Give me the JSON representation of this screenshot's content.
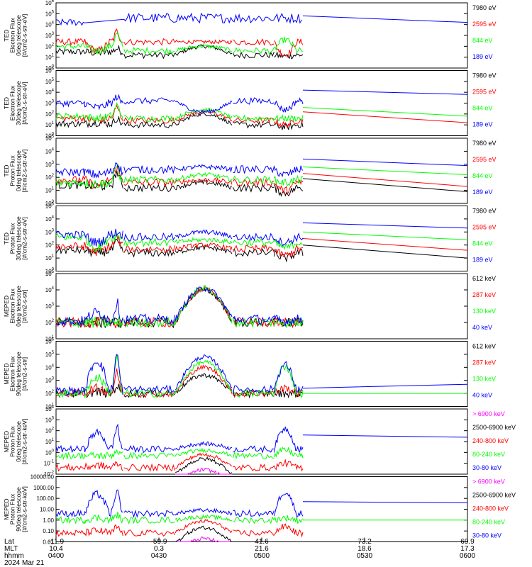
{
  "colors": {
    "black": "#000000",
    "red": "#ff0000",
    "green": "#00ff00",
    "blue": "#0000ff",
    "magenta": "#ff00ff"
  },
  "chart_data": [
    {
      "type": "line",
      "ylabel": "TED\nElectron Flux\n0deg telescope\n[#/cm2-s-str-eV]",
      "yscale": "log",
      "ylim": [
        1,
        1000000
      ],
      "ytick_labels": [
        "10^0",
        "10^1",
        "10^2",
        "10^3",
        "10^4",
        "10^5",
        "10^6"
      ],
      "legend": [
        {
          "label": "7980 eV",
          "color": "#000000"
        },
        {
          "label": "2595 eV",
          "color": "#ff0000"
        },
        {
          "label": "844 eV",
          "color": "#00ff00"
        },
        {
          "label": "189 eV",
          "color": "#0000ff"
        }
      ],
      "series": [
        {
          "name": "7980 eV",
          "color": "#000000",
          "level": [
            1.5,
            1.2
          ],
          "hump": [
            1.4,
            1.8,
            2.0,
            1.1
          ],
          "tail": null
        },
        {
          "name": "2595 eV",
          "color": "#ff0000",
          "level": [
            2.4,
            2.4
          ],
          "hump": [
            1.6,
            3.4,
            2.4,
            1.2
          ],
          "tail": null
        },
        {
          "name": "844 eV",
          "color": "#00ff00",
          "level": [
            2.0,
            1.6
          ],
          "hump": [
            1.6,
            3.2,
            2.0,
            2.6
          ],
          "tail": null
        },
        {
          "name": "189 eV",
          "color": "#0000ff",
          "level": [
            4.2,
            4.6
          ],
          "hump": null,
          "tail": [
            4.8,
            4.2
          ]
        }
      ]
    },
    {
      "type": "line",
      "ylabel": "TED\nElectron Flux\n30deg telescope\n[#/cm2-s-str-eV]",
      "yscale": "log",
      "ylim": [
        1,
        1000000
      ],
      "ytick_labels": [
        "10^0",
        "10^1",
        "10^2",
        "10^3",
        "10^4",
        "10^5",
        "10^6"
      ],
      "legend": [
        {
          "label": "7980 eV",
          "color": "#000000"
        },
        {
          "label": "2595 eV",
          "color": "#ff0000"
        },
        {
          "label": "844 eV",
          "color": "#00ff00"
        },
        {
          "label": "189 eV",
          "color": "#0000ff"
        }
      ],
      "series": [
        {
          "name": "7980 eV",
          "color": "#000000",
          "level": [
            1.1,
            1.0
          ],
          "hump": [
            1.2,
            1.6,
            2.0,
            0.8
          ],
          "tail": null
        },
        {
          "name": "2595 eV",
          "color": "#ff0000",
          "level": [
            1.6,
            1.4
          ],
          "hump": [
            1.4,
            2.6,
            2.2,
            1.0
          ],
          "tail": [
            2.2,
            1.2
          ]
        },
        {
          "name": "844 eV",
          "color": "#00ff00",
          "level": [
            1.8,
            1.6
          ],
          "hump": [
            1.6,
            2.8,
            2.4,
            1.6
          ],
          "tail": [
            2.6,
            1.8
          ]
        },
        {
          "name": "189 eV",
          "color": "#0000ff",
          "level": [
            3.0,
            3.2
          ],
          "hump": [
            2.6,
            3.6,
            2.2,
            2.4
          ],
          "tail": [
            4.2,
            3.8
          ]
        }
      ]
    },
    {
      "type": "line",
      "ylabel": "TED\nProton Flux\n0deg telescope\n[#/cm2-s-str-eV]",
      "yscale": "log",
      "ylim": [
        1,
        100000
      ],
      "ytick_labels": [
        "10^0",
        "10^1",
        "10^2",
        "10^3",
        "10^4",
        "10^5"
      ],
      "legend": [
        {
          "label": "7980 eV",
          "color": "#000000"
        },
        {
          "label": "2595 eV",
          "color": "#ff0000"
        },
        {
          "label": "844 eV",
          "color": "#00ff00"
        },
        {
          "label": "189 eV",
          "color": "#0000ff"
        }
      ],
      "series": [
        {
          "name": "7980 eV",
          "color": "#000000",
          "level": [
            1.4,
            1.2
          ],
          "hump": [
            1.3,
            2.4,
            1.6,
            0.8
          ],
          "tail": [
            1.9,
            0.9
          ]
        },
        {
          "name": "2595 eV",
          "color": "#ff0000",
          "level": [
            1.8,
            1.6
          ],
          "hump": [
            1.4,
            2.8,
            1.8,
            1.0
          ],
          "tail": [
            2.3,
            1.3
          ]
        },
        {
          "name": "844 eV",
          "color": "#00ff00",
          "level": [
            1.6,
            1.8
          ],
          "hump": [
            1.5,
            2.9,
            2.2,
            1.6
          ],
          "tail": [
            2.8,
            2.2
          ]
        },
        {
          "name": "189 eV",
          "color": "#0000ff",
          "level": [
            2.4,
            2.6
          ],
          "hump": [
            2.2,
            3.2,
            2.8,
            2.2
          ],
          "tail": [
            3.4,
            2.9
          ]
        }
      ]
    },
    {
      "type": "line",
      "ylabel": "TED\nProton Flux\n30deg telescope\n[#/cm2-s-str-eV]",
      "yscale": "log",
      "ylim": [
        1,
        100000
      ],
      "ytick_labels": [
        "10^0",
        "10^1",
        "10^2",
        "10^3",
        "10^4",
        "10^5"
      ],
      "legend": [
        {
          "label": "7980 eV",
          "color": "#000000"
        },
        {
          "label": "2595 eV",
          "color": "#ff0000"
        },
        {
          "label": "844 eV",
          "color": "#00ff00"
        },
        {
          "label": "189 eV",
          "color": "#0000ff"
        }
      ],
      "series": [
        {
          "name": "7980 eV",
          "color": "#000000",
          "level": [
            1.6,
            1.4
          ],
          "hump": [
            1.4,
            2.2,
            1.8,
            1.0
          ],
          "tail": [
            2.0,
            1.0
          ]
        },
        {
          "name": "2595 eV",
          "color": "#ff0000",
          "level": [
            1.9,
            1.7
          ],
          "hump": [
            1.5,
            2.6,
            2.0,
            1.2
          ],
          "tail": [
            2.5,
            1.6
          ]
        },
        {
          "name": "844 eV",
          "color": "#00ff00",
          "level": [
            2.6,
            2.2
          ],
          "hump": [
            1.8,
            2.7,
            2.4,
            1.8
          ],
          "tail": [
            3.0,
            2.4
          ]
        },
        {
          "name": "189 eV",
          "color": "#0000ff",
          "level": [
            2.8,
            2.6
          ],
          "hump": [
            2.2,
            3.0,
            3.0,
            2.2
          ],
          "tail": [
            3.7,
            3.3
          ]
        }
      ]
    },
    {
      "type": "line",
      "ylabel": "MEPED\nElectron Flux\n0deg telescope\n[#/cm2-s-str]",
      "yscale": "log",
      "ylim": [
        10,
        100000
      ],
      "ytick_labels": [
        "10^1",
        "10^2",
        "10^3",
        "10^4",
        "10^5"
      ],
      "legend": [
        {
          "label": "612 keV",
          "color": "#000000"
        },
        {
          "label": "287 keV",
          "color": "#ff0000"
        },
        {
          "label": "130 keV",
          "color": "#00ff00"
        },
        {
          "label": "40 keV",
          "color": "#0000ff"
        }
      ],
      "series": [
        {
          "name": "612 keV",
          "color": "#000000",
          "level": [
            2.0,
            2.0
          ],
          "hump": [
            2.0,
            2.0,
            4.0,
            2.0
          ],
          "tail": null
        },
        {
          "name": "287 keV",
          "color": "#ff0000",
          "level": [
            2.0,
            2.0
          ],
          "hump": [
            2.0,
            2.0,
            4.05,
            2.0
          ],
          "tail": null
        },
        {
          "name": "130 keV",
          "color": "#00ff00",
          "level": [
            2.0,
            2.0
          ],
          "hump": [
            2.0,
            2.0,
            4.1,
            2.0
          ],
          "tail": null
        },
        {
          "name": "40 keV",
          "color": "#0000ff",
          "level": [
            2.1,
            2.2
          ],
          "hump": [
            2.6,
            3.2,
            4.1,
            2.1
          ],
          "tail": null
        }
      ]
    },
    {
      "type": "line",
      "ylabel": "MEPED\nElectron Flux\n90deg telescope\n[#/cm2-s-str]",
      "yscale": "log",
      "ylim": [
        10,
        1000000
      ],
      "ytick_labels": [
        "10^1",
        "10^2",
        "10^3",
        "10^4",
        "10^5",
        "10^6"
      ],
      "legend": [
        {
          "label": "612 keV",
          "color": "#000000"
        },
        {
          "label": "287 keV",
          "color": "#ff0000"
        },
        {
          "label": "130 keV",
          "color": "#00ff00"
        },
        {
          "label": "40 keV",
          "color": "#0000ff"
        }
      ],
      "series": [
        {
          "name": "612 keV",
          "color": "#000000",
          "level": [
            2.0,
            2.0
          ],
          "hump": [
            2.1,
            2.6,
            3.4,
            2.0
          ],
          "tail": null
        },
        {
          "name": "287 keV",
          "color": "#ff0000",
          "level": [
            2.0,
            2.0
          ],
          "hump": [
            2.4,
            3.6,
            4.0,
            2.4
          ],
          "tail": null
        },
        {
          "name": "130 keV",
          "color": "#00ff00",
          "level": [
            2.0,
            2.0
          ],
          "hump": [
            3.2,
            4.8,
            4.4,
            4.1
          ],
          "tail": [
            2.0,
            2.0
          ]
        },
        {
          "name": "40 keV",
          "color": "#0000ff",
          "level": [
            2.2,
            2.3
          ],
          "hump": [
            4.5,
            5.0,
            4.8,
            4.2
          ],
          "tail": [
            2.4,
            2.7
          ]
        }
      ]
    },
    {
      "type": "line",
      "ylabel": "MEPED\nProton Flux\n0deg telescope\n[#/cm2-s-str-keV]",
      "yscale": "log",
      "ylim": [
        0.01,
        10000
      ],
      "ytick_labels": [
        "10^-2",
        "10^-1",
        "10^0",
        "10^1",
        "10^2",
        "10^3",
        "10^4"
      ],
      "legend": [
        {
          "label": "> 6900 keV",
          "color": "#ff00ff"
        },
        {
          "label": "2500-6900 keV",
          "color": "#000000"
        },
        {
          "label": "240-800 keV",
          "color": "#ff0000"
        },
        {
          "label": "80-240 keV",
          "color": "#00ff00"
        },
        {
          "label": "30-80 keV",
          "color": "#0000ff"
        }
      ],
      "series": [
        {
          "name": "> 6900 keV",
          "color": "#ff00ff",
          "level": null,
          "hump": [
            null,
            null,
            -1.6,
            null
          ],
          "tail": null
        },
        {
          "name": "2500-6900 keV",
          "color": "#000000",
          "level": null,
          "hump": [
            null,
            null,
            -0.6,
            null
          ],
          "tail": null
        },
        {
          "name": "240-800 keV",
          "color": "#ff0000",
          "level": [
            -1.4,
            -1.4
          ],
          "hump": [
            -1.2,
            -1.0,
            -0.2,
            -1.0
          ],
          "tail": null
        },
        {
          "name": "80-240 keV",
          "color": "#00ff00",
          "level": [
            -0.3,
            -0.3
          ],
          "hump": [
            -0.3,
            0.2,
            0.2,
            0.2
          ],
          "tail": null
        },
        {
          "name": "30-80 keV",
          "color": "#0000ff",
          "level": [
            0.3,
            0.3
          ],
          "hump": [
            1.8,
            2.4,
            0.8,
            2.2
          ],
          "tail": [
            1.6,
            1.4
          ]
        }
      ]
    },
    {
      "type": "line",
      "ylabel": "MEPED\nProton Flux\n90deg telescope\n[#/cm2-s-str-keV]",
      "yscale": "log",
      "ylim": [
        0.01,
        10000
      ],
      "ytick_labels": [
        "10000.00",
        "1000.00",
        "100.00",
        "10.00",
        "1.00",
        "0.10",
        "0.01"
      ],
      "legend": [
        {
          "label": "> 6900 keV",
          "color": "#ff00ff"
        },
        {
          "label": "2500-6900 keV",
          "color": "#000000"
        },
        {
          "label": "240-800 keV",
          "color": "#ff0000"
        },
        {
          "label": "80-240 keV",
          "color": "#00ff00"
        },
        {
          "label": "30-80 keV",
          "color": "#0000ff"
        }
      ],
      "series": [
        {
          "name": "> 6900 keV",
          "color": "#ff00ff",
          "level": null,
          "hump": [
            null,
            null,
            -1.7,
            null
          ],
          "tail": null
        },
        {
          "name": "2500-6900 keV",
          "color": "#000000",
          "level": null,
          "hump": [
            null,
            null,
            -0.7,
            null
          ],
          "tail": null
        },
        {
          "name": "240-800 keV",
          "color": "#ff0000",
          "level": [
            -1.2,
            -1.2
          ],
          "hump": [
            -1.0,
            -0.6,
            -0.1,
            -0.6
          ],
          "tail": null
        },
        {
          "name": "80-240 keV",
          "color": "#00ff00",
          "level": [
            0.0,
            0.0
          ],
          "hump": [
            0.2,
            0.5,
            0.3,
            0.2
          ],
          "tail": [
            0.0,
            0.0
          ]
        },
        {
          "name": "30-80 keV",
          "color": "#0000ff",
          "level": [
            0.6,
            0.6
          ],
          "hump": [
            2.4,
            2.8,
            0.9,
            2.6
          ],
          "tail": [
            1.7,
            1.6
          ]
        }
      ]
    }
  ],
  "x_axis": {
    "row_labels": [
      "Lat",
      "MLT",
      "hhmm"
    ],
    "date": "2024 Mar 21",
    "ticks": [
      {
        "hhmm": "0400",
        "lat": "-11.9",
        "mlt": "10.4"
      },
      {
        "hhmm": "0430",
        "lat": "-59.9",
        "mlt": "0.3"
      },
      {
        "hhmm": "0500",
        "lat": "41.6",
        "mlt": "21.6"
      },
      {
        "hhmm": "0530",
        "lat": "73.2",
        "mlt": "18.6"
      },
      {
        "hhmm": "0600",
        "lat": "69.9",
        "mlt": "17.3"
      }
    ]
  }
}
